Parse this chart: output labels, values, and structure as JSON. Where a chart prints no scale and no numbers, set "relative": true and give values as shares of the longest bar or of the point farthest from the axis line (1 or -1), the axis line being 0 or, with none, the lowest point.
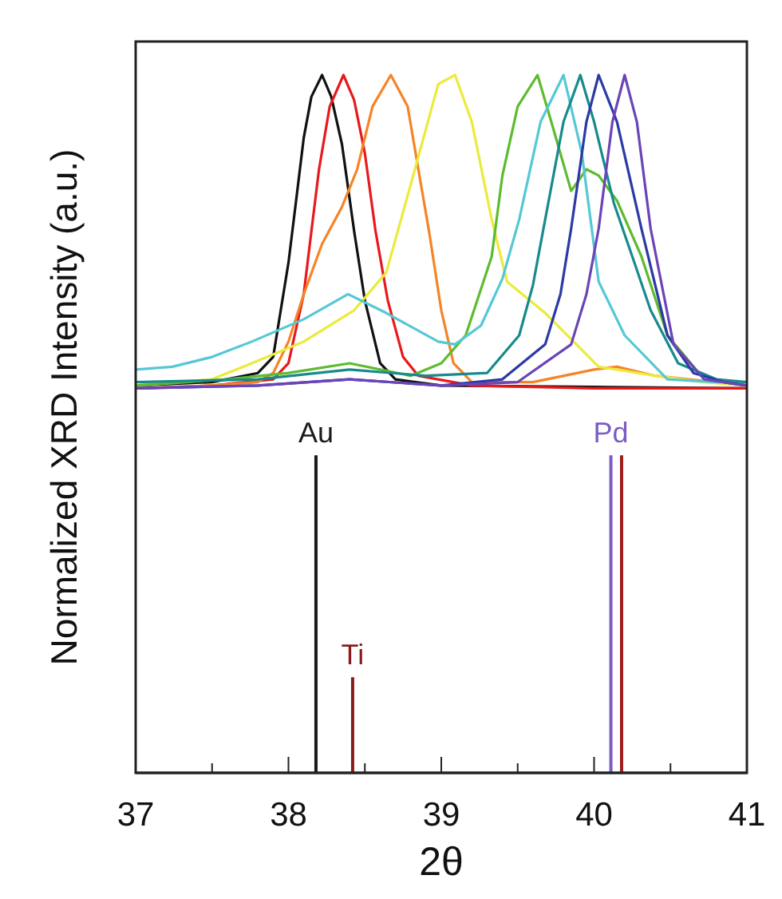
{
  "chart_data": {
    "type": "line",
    "relative": true,
    "xlabel": "2θ",
    "ylabel": "Normalized XRD Intensity (a.u.)",
    "xlim": [
      37,
      41
    ],
    "xticks": [
      37,
      {
        "value": 37.5,
        "label": null
      },
      38,
      {
        "value": 38.5,
        "label": null
      },
      39,
      {
        "value": 39.5,
        "label": null
      },
      40,
      {
        "value": 40.5,
        "label": null
      },
      41
    ],
    "series": [
      {
        "color": "#111111",
        "x": [
          37,
          37.5,
          37.8,
          37.9,
          38.0,
          38.05,
          38.1,
          38.15,
          38.22,
          38.28,
          38.35,
          38.43,
          38.5,
          38.6,
          38.7,
          39,
          40,
          41
        ],
        "values": [
          0.555,
          0.56,
          0.573,
          0.596,
          0.731,
          0.82,
          0.91,
          0.969,
          1,
          0.969,
          0.901,
          0.776,
          0.677,
          0.587,
          0.564,
          0.555,
          0.553,
          0.551
        ]
      },
      {
        "color": "#e8191c",
        "x": [
          37,
          37.5,
          37.9,
          38.0,
          38.1,
          38.15,
          38.2,
          38.27,
          38.36,
          38.43,
          38.5,
          38.57,
          38.65,
          38.75,
          38.85,
          39.2,
          40,
          41
        ],
        "values": [
          0.551,
          0.555,
          0.564,
          0.587,
          0.686,
          0.776,
          0.865,
          0.955,
          1,
          0.964,
          0.888,
          0.776,
          0.677,
          0.596,
          0.569,
          0.555,
          0.551,
          0.551
        ]
      },
      {
        "color": "#f58426",
        "x": [
          37,
          37.5,
          37.8,
          37.9,
          38.0,
          38.1,
          38.22,
          38.35,
          38.45,
          38.55,
          38.67,
          38.78,
          38.85,
          38.92,
          39.0,
          39.08,
          39.2,
          39.6,
          40.0,
          40.15,
          40.4,
          41
        ],
        "values": [
          0.551,
          0.555,
          0.56,
          0.573,
          0.618,
          0.686,
          0.758,
          0.811,
          0.865,
          0.955,
          1,
          0.955,
          0.865,
          0.776,
          0.663,
          0.587,
          0.56,
          0.56,
          0.578,
          0.582,
          0.569,
          0.555
        ]
      },
      {
        "color": "#ecea3a",
        "x": [
          37,
          37.5,
          37.76,
          38.1,
          38.43,
          38.64,
          38.8,
          38.98,
          39.09,
          39.2,
          39.33,
          39.43,
          39.68,
          40.03,
          40.4,
          40.72,
          41
        ],
        "values": [
          0.555,
          0.564,
          0.587,
          0.618,
          0.663,
          0.717,
          0.843,
          0.987,
          1,
          0.933,
          0.793,
          0.704,
          0.659,
          0.582,
          0.569,
          0.56,
          0.555
        ]
      },
      {
        "color": "#5dbb2e",
        "x": [
          37,
          37.6,
          38.0,
          38.4,
          38.8,
          39.0,
          39.16,
          39.33,
          39.4,
          39.5,
          39.63,
          39.72,
          39.85,
          39.95,
          40.03,
          40.15,
          40.31,
          40.48,
          40.72,
          41
        ],
        "values": [
          0.555,
          0.564,
          0.573,
          0.587,
          0.569,
          0.587,
          0.627,
          0.74,
          0.856,
          0.955,
          1,
          0.933,
          0.834,
          0.865,
          0.856,
          0.82,
          0.74,
          0.627,
          0.564,
          0.555
        ]
      },
      {
        "color": "#55c8d6",
        "x": [
          37,
          37.24,
          37.5,
          37.76,
          38.1,
          38.39,
          38.64,
          38.98,
          39.09,
          39.26,
          39.4,
          39.51,
          39.65,
          39.8,
          39.92,
          40.03,
          40.2,
          40.48,
          40.8,
          41
        ],
        "values": [
          0.578,
          0.582,
          0.596,
          0.618,
          0.65,
          0.686,
          0.659,
          0.618,
          0.614,
          0.641,
          0.708,
          0.793,
          0.933,
          1,
          0.888,
          0.704,
          0.627,
          0.564,
          0.56,
          0.56
        ]
      },
      {
        "color": "#178a8c",
        "x": [
          37,
          37.8,
          38.4,
          38.9,
          39.3,
          39.51,
          39.6,
          39.68,
          39.8,
          39.91,
          40.0,
          40.13,
          40.25,
          40.37,
          40.55,
          40.8,
          41
        ],
        "values": [
          0.56,
          0.564,
          0.578,
          0.569,
          0.573,
          0.627,
          0.699,
          0.793,
          0.933,
          1,
          0.933,
          0.816,
          0.74,
          0.663,
          0.587,
          0.564,
          0.56
        ]
      },
      {
        "color": "#2b3aa4",
        "x": [
          37,
          37.8,
          38.4,
          39,
          39.4,
          39.68,
          39.78,
          39.85,
          39.95,
          40.03,
          40.15,
          40.31,
          40.48,
          40.65,
          40.85,
          41
        ],
        "values": [
          0.551,
          0.555,
          0.564,
          0.555,
          0.564,
          0.614,
          0.686,
          0.78,
          0.933,
          1,
          0.933,
          0.78,
          0.627,
          0.573,
          0.56,
          0.555
        ]
      },
      {
        "color": "#6b44b8",
        "x": [
          37,
          37.8,
          38.4,
          39,
          39.5,
          39.85,
          39.95,
          40.03,
          40.12,
          40.2,
          40.28,
          40.37,
          40.52,
          40.72,
          41
        ],
        "values": [
          0.551,
          0.555,
          0.564,
          0.555,
          0.56,
          0.614,
          0.686,
          0.78,
          0.933,
          1,
          0.933,
          0.78,
          0.614,
          0.564,
          0.555
        ]
      },
      {
        "color": "#1a1a1a",
        "x": [
          38.18,
          38.18
        ],
        "values": [
          0,
          0.455
        ]
      },
      {
        "color": "#8b1c1c",
        "x": [
          38.42,
          38.42
        ],
        "values": [
          0,
          0.137
        ]
      },
      {
        "color": "#7b5cc4",
        "x": [
          40.11,
          40.11
        ],
        "values": [
          0,
          0.455
        ]
      },
      {
        "color": "#a01c1c",
        "x": [
          40.18,
          40.18
        ],
        "values": [
          0,
          0.455
        ]
      }
    ],
    "annotations": [
      {
        "text": "Au",
        "x": 38.18,
        "y": 0.455
      },
      {
        "text": "Ti",
        "x": 38.42,
        "y": 0.137
      },
      {
        "text": "Pd",
        "x": 40.11,
        "y": 0.455
      }
    ]
  }
}
